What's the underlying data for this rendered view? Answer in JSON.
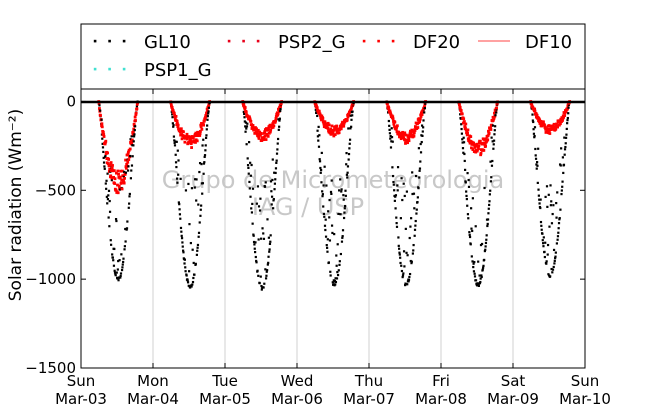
{
  "chart_data": {
    "type": "scatter",
    "title": "",
    "xlabel": "",
    "ylabel": "Solar radiation (Wm⁻²)",
    "ylim": [
      -1500,
      70
    ],
    "xlim": [
      0,
      7
    ],
    "y_ticks": [
      0,
      -500,
      -1000,
      -1500
    ],
    "x_ticks": [
      {
        "x": 0,
        "day": "Sun",
        "date": "Mar-03"
      },
      {
        "x": 1,
        "day": "Mon",
        "date": "Mar-04"
      },
      {
        "x": 2,
        "day": "Tue",
        "date": "Mar-05"
      },
      {
        "x": 3,
        "day": "Wed",
        "date": "Mar-06"
      },
      {
        "x": 4,
        "day": "Thu",
        "date": "Mar-07"
      },
      {
        "x": 5,
        "day": "Fri",
        "date": "Mar-08"
      },
      {
        "x": 6,
        "day": "Sat",
        "date": "Mar-09"
      },
      {
        "x": 7,
        "day": "Sun",
        "date": "Mar-10"
      }
    ],
    "grid": "vertical",
    "legend_position": "top",
    "watermark": [
      "Grupo de Micrometeorologia",
      "IAG / USP"
    ],
    "series": [
      {
        "name": "GL10",
        "color": "#000000",
        "marker": "dot",
        "daily_min": [
          -1000,
          -1040,
          -1050,
          -1030,
          -1030,
          -1030,
          -980
        ]
      },
      {
        "name": "PSP2_G",
        "color": "#e8001a",
        "marker": "dot",
        "values": []
      },
      {
        "name": "DF20",
        "color": "#ff0000",
        "marker": "dot",
        "daily_min": [
          -520,
          -260,
          -220,
          -190,
          -230,
          -300,
          -180
        ]
      },
      {
        "name": "DF10",
        "color": "#ff6a6a",
        "marker": "line",
        "values": []
      },
      {
        "name": "PSP1_G",
        "color": "#40e0d0",
        "marker": "dot",
        "values": []
      }
    ]
  }
}
